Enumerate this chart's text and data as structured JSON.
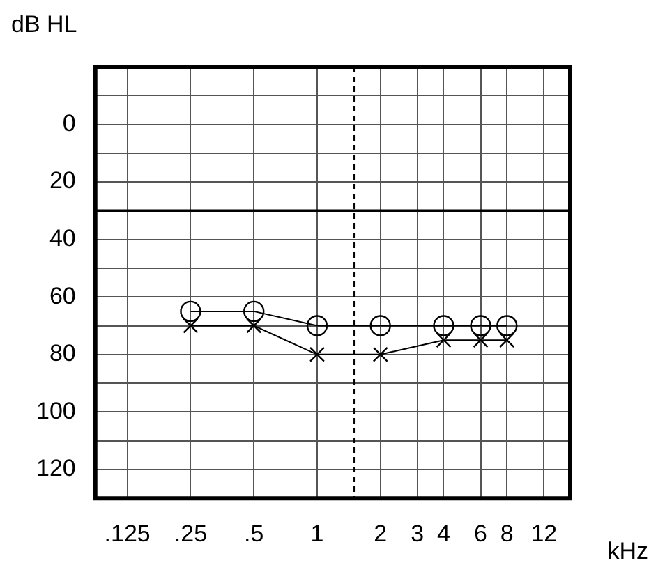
{
  "chart_data": {
    "type": "line",
    "ylabel": "dB HL",
    "xlabel": "kHz",
    "xlim": [
      0.088,
      16
    ],
    "ylim": [
      130,
      -20
    ],
    "log": "x",
    "xticks": [
      {
        "value": 0.125,
        "label": ".125"
      },
      {
        "value": 0.25,
        "label": ".25"
      },
      {
        "value": 0.5,
        "label": ".5"
      },
      1,
      2,
      3,
      4,
      6,
      8,
      12
    ],
    "yticks": [
      {
        "value": -10,
        "label": null
      },
      0,
      {
        "value": 10,
        "label": null
      },
      20,
      {
        "value": 30,
        "label": null
      },
      40,
      {
        "value": 50,
        "label": null
      },
      60,
      {
        "value": 70,
        "label": null
      },
      80,
      {
        "value": 90,
        "label": null
      },
      100,
      {
        "value": 110,
        "label": null
      },
      120
    ],
    "x": [
      0.25,
      0.5,
      1,
      2,
      4,
      6,
      8
    ],
    "series": [
      {
        "color": "#000000",
        "marker": "circle",
        "values": [
          65,
          65,
          70,
          70,
          70,
          70,
          70
        ]
      },
      {
        "color": "#000000",
        "marker": "cross",
        "values": [
          70,
          70,
          80,
          80,
          75,
          75,
          75
        ]
      }
    ],
    "ref_lines": [
      {
        "axis": "y",
        "value": 30,
        "color": "#000000",
        "line_style": "solid"
      },
      {
        "axis": "x",
        "value": 1.5,
        "color": "#000000",
        "line_style": "dashed"
      }
    ],
    "grid": true,
    "legend": false
  }
}
